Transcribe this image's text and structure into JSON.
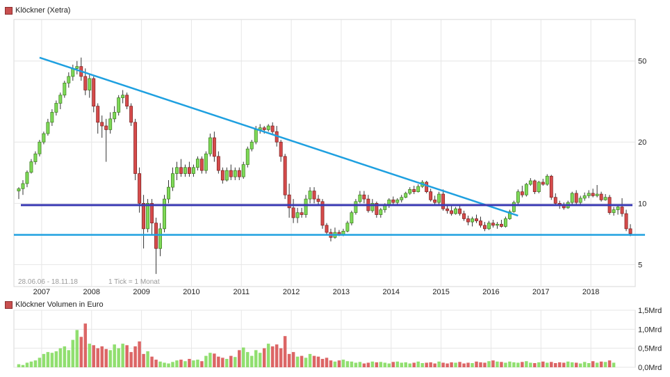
{
  "chart_data": [
    {
      "type": "candlestick",
      "title": "Klöckner (Xetra)",
      "scale": "log",
      "ylim": [
        3.9,
        80
      ],
      "y_ticks": [
        "50",
        "20",
        "10",
        "5"
      ],
      "x_ticks": [
        "2007",
        "2008",
        "2009",
        "2010",
        "2011",
        "2012",
        "2013",
        "2014",
        "2015",
        "2016",
        "2017",
        "2018"
      ],
      "date_range_label": "28.06.06 - 18.11.18",
      "tick_label": "1 Tick = 1 Monat",
      "candles": [
        [
          11.5,
          12.0,
          10.5,
          11.8
        ],
        [
          11.8,
          13.0,
          11.0,
          12.5
        ],
        [
          12.5,
          14.5,
          12.0,
          14.2
        ],
        [
          14.2,
          16.5,
          14.0,
          16.0
        ],
        [
          16.0,
          18.0,
          15.5,
          17.5
        ],
        [
          17.5,
          20.5,
          17.0,
          20.0
        ],
        [
          20.0,
          22.5,
          19.5,
          22.0
        ],
        [
          22.0,
          26.0,
          21.5,
          25.0
        ],
        [
          25.0,
          29.0,
          24.0,
          28.0
        ],
        [
          28.0,
          32.0,
          27.0,
          31.0
        ],
        [
          31.0,
          35.0,
          29.0,
          34.0
        ],
        [
          34.0,
          40.0,
          33.0,
          39.0
        ],
        [
          39.0,
          44.0,
          37.0,
          42.0
        ],
        [
          42.0,
          48.0,
          40.0,
          46.0
        ],
        [
          46.0,
          50.0,
          43.0,
          47.0
        ],
        [
          47.0,
          52.0,
          40.0,
          42.0
        ],
        [
          42.0,
          46.0,
          34.0,
          36.0
        ],
        [
          36.0,
          43.0,
          33.0,
          41.0
        ],
        [
          41.0,
          42.0,
          28.0,
          30.0
        ],
        [
          30.0,
          31.0,
          22.0,
          25.0
        ],
        [
          25.0,
          27.0,
          21.0,
          24.0
        ],
        [
          24.0,
          26.0,
          16.0,
          23.0
        ],
        [
          23.0,
          28.0,
          22.0,
          26.0
        ],
        [
          26.0,
          30.0,
          25.0,
          28.0
        ],
        [
          28.0,
          34.0,
          27.0,
          33.0
        ],
        [
          33.0,
          36.0,
          31.0,
          34.0
        ],
        [
          34.0,
          35.0,
          29.0,
          30.0
        ],
        [
          30.0,
          31.0,
          24.0,
          25.0
        ],
        [
          25.0,
          26.0,
          13.0,
          14.0
        ],
        [
          14.0,
          15.0,
          9.0,
          10.0
        ],
        [
          10.0,
          11.0,
          6.0,
          7.5
        ],
        [
          7.5,
          10.5,
          7.2,
          10.0
        ],
        [
          10.0,
          10.5,
          7.0,
          8.0
        ],
        [
          8.0,
          8.5,
          4.5,
          6.0
        ],
        [
          6.0,
          8.0,
          5.5,
          7.5
        ],
        [
          7.5,
          11.0,
          7.2,
          10.5
        ],
        [
          10.5,
          13.0,
          10.0,
          12.0
        ],
        [
          12.0,
          15.0,
          11.5,
          14.0
        ],
        [
          14.0,
          16.0,
          13.0,
          15.0
        ],
        [
          15.0,
          16.5,
          13.5,
          14.0
        ],
        [
          14.0,
          15.5,
          13.5,
          15.0
        ],
        [
          15.0,
          16.0,
          13.5,
          14.0
        ],
        [
          14.0,
          15.5,
          13.5,
          15.0
        ],
        [
          15.0,
          17.0,
          14.5,
          16.5
        ],
        [
          16.5,
          17.0,
          14.0,
          14.5
        ],
        [
          14.5,
          18.0,
          14.0,
          17.5
        ],
        [
          17.5,
          22.0,
          17.0,
          21.0
        ],
        [
          21.0,
          22.5,
          16.0,
          17.0
        ],
        [
          17.0,
          18.0,
          14.0,
          14.5
        ],
        [
          14.5,
          15.0,
          12.5,
          13.0
        ],
        [
          13.0,
          15.0,
          12.8,
          14.5
        ],
        [
          14.5,
          15.5,
          13.0,
          13.5
        ],
        [
          13.5,
          15.0,
          13.0,
          14.5
        ],
        [
          14.5,
          15.0,
          13.0,
          13.5
        ],
        [
          13.5,
          16.0,
          13.2,
          15.5
        ],
        [
          15.5,
          19.0,
          15.0,
          18.5
        ],
        [
          18.5,
          20.5,
          18.0,
          20.0
        ],
        [
          20.0,
          24.0,
          19.5,
          23.0
        ],
        [
          23.0,
          24.5,
          22.0,
          23.5
        ],
        [
          23.5,
          24.0,
          22.0,
          23.0
        ],
        [
          23.0,
          24.5,
          22.5,
          24.0
        ],
        [
          24.0,
          25.0,
          22.0,
          22.5
        ],
        [
          22.5,
          24.0,
          19.0,
          20.0
        ],
        [
          20.0,
          20.5,
          16.0,
          17.0
        ],
        [
          17.0,
          17.5,
          10.5,
          11.0
        ],
        [
          11.0,
          12.5,
          8.5,
          9.5
        ],
        [
          9.5,
          10.5,
          8.0,
          8.5
        ],
        [
          8.5,
          9.5,
          8.0,
          9.0
        ],
        [
          9.0,
          9.5,
          8.5,
          8.8
        ],
        [
          8.8,
          11.0,
          8.5,
          10.5
        ],
        [
          10.5,
          12.0,
          10.0,
          11.5
        ],
        [
          11.5,
          12.0,
          10.0,
          10.5
        ],
        [
          10.5,
          11.0,
          9.8,
          10.2
        ],
        [
          10.2,
          10.5,
          7.5,
          7.8
        ],
        [
          7.8,
          8.0,
          7.0,
          7.2
        ],
        [
          7.2,
          7.5,
          6.5,
          6.8
        ],
        [
          6.8,
          7.6,
          6.7,
          7.2
        ],
        [
          7.2,
          7.4,
          6.9,
          7.0
        ],
        [
          7.0,
          7.5,
          6.9,
          7.3
        ],
        [
          7.3,
          8.2,
          7.2,
          8.0
        ],
        [
          8.0,
          9.2,
          7.8,
          9.0
        ],
        [
          9.0,
          10.5,
          8.8,
          10.2
        ],
        [
          10.2,
          11.5,
          10.0,
          11.0
        ],
        [
          11.0,
          11.5,
          10.0,
          10.5
        ],
        [
          10.5,
          11.0,
          9.0,
          9.2
        ],
        [
          9.2,
          10.5,
          9.0,
          10.0
        ],
        [
          10.0,
          10.2,
          8.5,
          8.8
        ],
        [
          8.8,
          9.5,
          8.5,
          9.3
        ],
        [
          9.3,
          10.0,
          9.0,
          9.8
        ],
        [
          9.8,
          10.6,
          9.5,
          10.4
        ],
        [
          10.4,
          10.8,
          9.8,
          10.1
        ],
        [
          10.1,
          10.6,
          9.9,
          10.4
        ],
        [
          10.4,
          11.0,
          10.1,
          10.7
        ],
        [
          10.7,
          11.4,
          10.6,
          11.2
        ],
        [
          11.2,
          12.0,
          11.0,
          11.7
        ],
        [
          11.7,
          12.2,
          11.1,
          11.4
        ],
        [
          11.4,
          12.4,
          11.3,
          12.1
        ],
        [
          12.1,
          13.0,
          11.9,
          12.7
        ],
        [
          12.7,
          12.9,
          11.2,
          11.4
        ],
        [
          11.4,
          11.8,
          10.2,
          10.4
        ],
        [
          10.4,
          10.9,
          9.9,
          10.1
        ],
        [
          10.1,
          11.4,
          9.9,
          11.1
        ],
        [
          11.1,
          11.7,
          9.2,
          9.4
        ],
        [
          9.4,
          9.8,
          8.9,
          9.2
        ],
        [
          9.2,
          9.7,
          8.7,
          8.9
        ],
        [
          8.9,
          9.6,
          8.8,
          9.4
        ],
        [
          9.4,
          9.8,
          8.7,
          8.9
        ],
        [
          8.9,
          9.2,
          8.2,
          8.4
        ],
        [
          8.4,
          8.7,
          7.8,
          8.1
        ],
        [
          8.1,
          8.6,
          7.7,
          8.4
        ],
        [
          8.4,
          8.8,
          8.0,
          8.2
        ],
        [
          8.2,
          8.6,
          7.6,
          7.8
        ],
        [
          7.8,
          8.1,
          7.3,
          7.5
        ],
        [
          7.5,
          8.2,
          7.4,
          8.0
        ],
        [
          8.0,
          8.3,
          7.6,
          7.8
        ],
        [
          7.8,
          8.1,
          7.5,
          7.9
        ],
        [
          7.9,
          8.3,
          7.6,
          7.7
        ],
        [
          7.7,
          8.6,
          7.6,
          8.4
        ],
        [
          8.4,
          9.3,
          8.3,
          9.1
        ],
        [
          9.1,
          10.3,
          9.0,
          10.1
        ],
        [
          10.1,
          11.7,
          9.9,
          11.4
        ],
        [
          11.4,
          12.2,
          10.7,
          11.0
        ],
        [
          11.0,
          12.6,
          10.8,
          12.4
        ],
        [
          12.4,
          13.3,
          12.2,
          12.9
        ],
        [
          12.9,
          13.1,
          11.1,
          11.4
        ],
        [
          11.4,
          12.9,
          11.2,
          12.7
        ],
        [
          12.7,
          13.2,
          12.2,
          12.4
        ],
        [
          12.4,
          13.9,
          12.2,
          13.6
        ],
        [
          13.6,
          13.8,
          10.4,
          10.7
        ],
        [
          10.7,
          11.2,
          9.8,
          10.0
        ],
        [
          10.0,
          10.3,
          9.4,
          9.8
        ],
        [
          9.8,
          10.1,
          9.3,
          9.5
        ],
        [
          9.5,
          10.3,
          9.4,
          10.1
        ],
        [
          10.1,
          11.4,
          9.9,
          11.2
        ],
        [
          11.2,
          11.6,
          9.9,
          10.1
        ],
        [
          10.1,
          10.9,
          9.7,
          10.6
        ],
        [
          10.6,
          11.3,
          10.3,
          10.9
        ],
        [
          10.9,
          11.6,
          10.6,
          11.2
        ],
        [
          11.2,
          11.8,
          10.7,
          10.9
        ],
        [
          10.9,
          12.3,
          10.7,
          11.1
        ],
        [
          11.1,
          11.4,
          10.2,
          10.4
        ],
        [
          10.4,
          11.1,
          10.3,
          10.7
        ],
        [
          10.7,
          11.0,
          8.8,
          9.0
        ],
        [
          9.0,
          9.6,
          8.7,
          9.3
        ],
        [
          9.3,
          9.9,
          8.8,
          9.6
        ],
        [
          9.6,
          10.6,
          8.6,
          8.9
        ],
        [
          8.9,
          9.3,
          7.3,
          7.5
        ],
        [
          7.5,
          7.9,
          6.9,
          7.1
        ]
      ]
    },
    {
      "type": "bar",
      "title": "Klöckner Volumen in Euro",
      "ylim": [
        0,
        1.5
      ],
      "unit": "Mrd",
      "y_ticks": [
        "1,5Mrd",
        "1,0Mrd",
        "0,5Mrd",
        "0,0Mrd"
      ],
      "values": [
        0.08,
        0.06,
        0.12,
        0.15,
        0.18,
        0.25,
        0.35,
        0.4,
        0.38,
        0.42,
        0.5,
        0.55,
        0.45,
        0.72,
        0.98,
        0.8,
        1.15,
        0.62,
        0.58,
        0.5,
        0.55,
        0.48,
        0.45,
        0.6,
        0.5,
        0.62,
        0.58,
        0.4,
        0.55,
        0.68,
        0.35,
        0.42,
        0.28,
        0.2,
        0.15,
        0.12,
        0.1,
        0.14,
        0.18,
        0.2,
        0.16,
        0.22,
        0.18,
        0.2,
        0.16,
        0.3,
        0.38,
        0.36,
        0.28,
        0.25,
        0.22,
        0.3,
        0.27,
        0.45,
        0.52,
        0.4,
        0.3,
        0.45,
        0.38,
        0.5,
        0.62,
        0.55,
        0.6,
        0.5,
        0.82,
        0.35,
        0.4,
        0.28,
        0.3,
        0.25,
        0.35,
        0.3,
        0.28,
        0.22,
        0.25,
        0.18,
        0.15,
        0.18,
        0.2,
        0.16,
        0.15,
        0.12,
        0.14,
        0.1,
        0.12,
        0.15,
        0.13,
        0.14,
        0.12,
        0.1,
        0.14,
        0.15,
        0.12,
        0.13,
        0.1,
        0.12,
        0.15,
        0.11,
        0.12,
        0.13,
        0.1,
        0.15,
        0.12,
        0.1,
        0.13,
        0.12,
        0.14,
        0.1,
        0.12,
        0.11,
        0.15,
        0.13,
        0.12,
        0.16,
        0.18,
        0.15,
        0.14,
        0.12,
        0.15,
        0.13,
        0.12,
        0.14,
        0.16,
        0.12,
        0.11,
        0.13,
        0.15,
        0.12,
        0.14,
        0.11,
        0.13,
        0.12,
        0.15,
        0.13,
        0.12,
        0.1,
        0.14,
        0.11,
        0.16,
        0.12,
        0.15,
        0.14,
        0.18,
        0.12
      ]
    }
  ],
  "legend": {
    "main": "Klöckner (Xetra)",
    "volume": "Klöckner Volumen in Euro"
  },
  "colors": {
    "up": "#7ed957",
    "up_stroke": "#3a7a1c",
    "down": "#d64b4b",
    "down_stroke": "#7a1c1c",
    "trend": "#1ea0e0",
    "support": "#3b3bb3"
  }
}
